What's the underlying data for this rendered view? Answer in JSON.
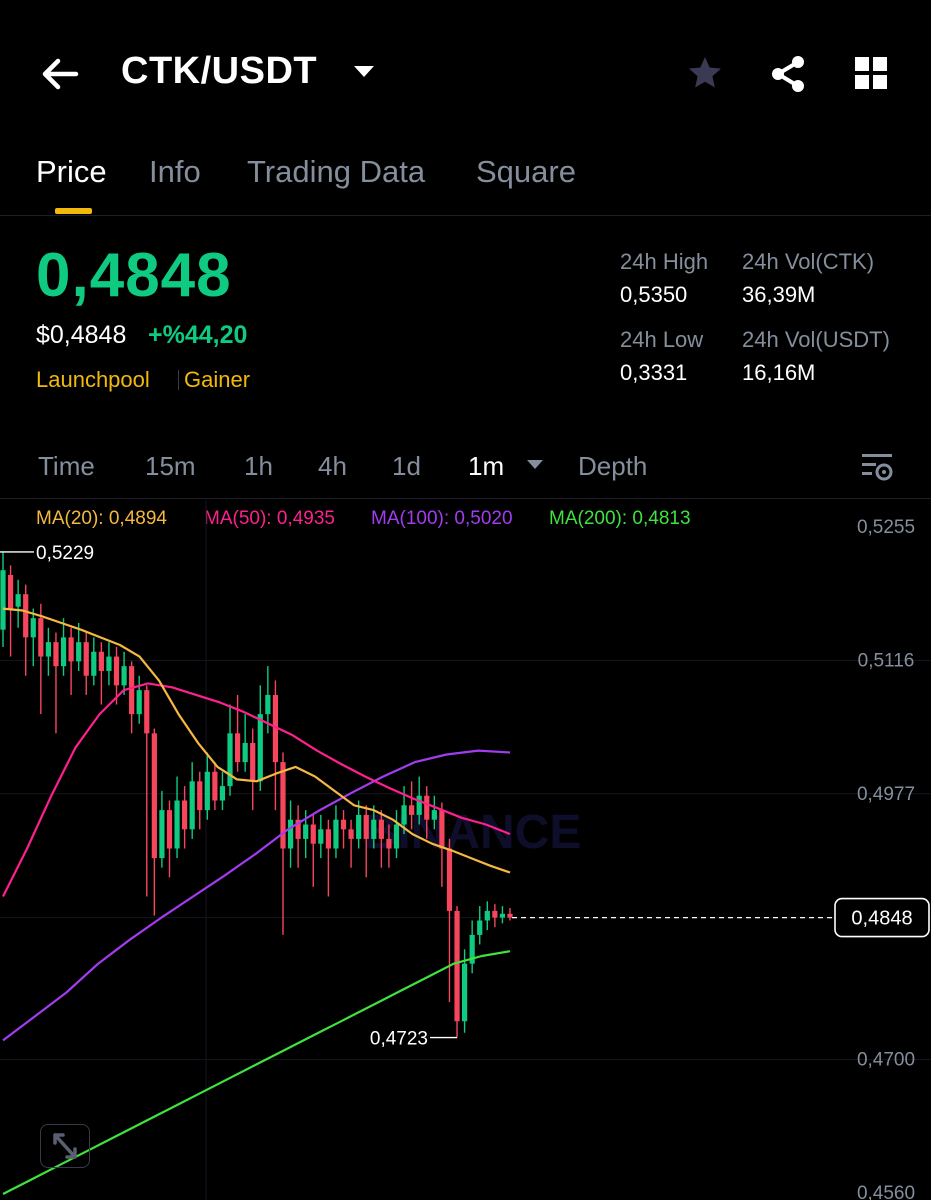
{
  "header": {
    "pair": "CTK/USDT",
    "icons": {
      "back": "arrow-left-icon",
      "favorite": "star-icon",
      "share": "share-icon",
      "more": "grid-icon"
    }
  },
  "tabs": [
    {
      "label": "Price",
      "active": true
    },
    {
      "label": "Info",
      "active": false
    },
    {
      "label": "Trading Data",
      "active": false
    },
    {
      "label": "Square",
      "active": false
    }
  ],
  "price": {
    "last": "0,4848",
    "usd": "$0,4848",
    "change": "+%44,20",
    "tags": [
      "Launchpool",
      "Gainer"
    ]
  },
  "stats": {
    "high_label": "24h High",
    "high": "0,5350",
    "vol_base_label": "24h Vol(CTK)",
    "vol_base": "36,39M",
    "low_label": "24h Low",
    "low": "0,3331",
    "vol_quote_label": "24h Vol(USDT)",
    "vol_quote": "16,16M"
  },
  "intervals": [
    {
      "label": "Time",
      "active": false
    },
    {
      "label": "15m",
      "active": false
    },
    {
      "label": "1h",
      "active": false
    },
    {
      "label": "4h",
      "active": false
    },
    {
      "label": "1d",
      "active": false
    },
    {
      "label": "1m",
      "active": true
    },
    {
      "label": "Depth",
      "active": false
    }
  ],
  "ma_legend": [
    {
      "label": "MA(20): 0,4894",
      "color": "#f5b841"
    },
    {
      "label": "MA(50): 0,4935",
      "color": "#ff1f8f"
    },
    {
      "label": "MA(100): 0,5020",
      "color": "#a23cf0"
    },
    {
      "label": "MA(200): 0,4813",
      "color": "#3fe23f"
    }
  ],
  "colors": {
    "up": "#0ecb81",
    "down": "#f6465d",
    "accent": "#f0b90b"
  },
  "chart_data": {
    "type": "candlestick",
    "y_ticks": [
      "0,5255",
      "0,5116",
      "0,4977",
      "0,4848",
      "0,4700",
      "0,4560"
    ],
    "ylim": [
      0.456,
      0.5255
    ],
    "current_price": "0,4848",
    "current_value": 0.4848,
    "high_marker": {
      "label": "0,5229",
      "value": 0.5229
    },
    "low_marker": {
      "label": "0,4723",
      "value": 0.4723
    },
    "watermark": "BINANCE",
    "candles": [
      [
        0.5148,
        0.521,
        0.5229,
        0.513
      ],
      [
        0.5205,
        0.517,
        0.5215,
        0.512
      ],
      [
        0.5172,
        0.5185,
        0.52,
        0.515
      ],
      [
        0.5185,
        0.514,
        0.5195,
        0.51
      ],
      [
        0.514,
        0.516,
        0.517,
        0.511
      ],
      [
        0.516,
        0.512,
        0.5175,
        0.506
      ],
      [
        0.512,
        0.5135,
        0.515,
        0.51
      ],
      [
        0.5135,
        0.511,
        0.5145,
        0.504
      ],
      [
        0.511,
        0.514,
        0.516,
        0.51
      ],
      [
        0.514,
        0.5115,
        0.515,
        0.508
      ],
      [
        0.5115,
        0.5135,
        0.5155,
        0.5105
      ],
      [
        0.5135,
        0.51,
        0.5145,
        0.508
      ],
      [
        0.51,
        0.5125,
        0.514,
        0.509
      ],
      [
        0.5125,
        0.5105,
        0.5135,
        0.507
      ],
      [
        0.5105,
        0.512,
        0.5135,
        0.509
      ],
      [
        0.512,
        0.509,
        0.513,
        0.507
      ],
      [
        0.509,
        0.511,
        0.5125,
        0.508
      ],
      [
        0.511,
        0.506,
        0.5115,
        0.504
      ],
      [
        0.506,
        0.5085,
        0.51,
        0.505
      ],
      [
        0.5085,
        0.504,
        0.509,
        0.487
      ],
      [
        0.504,
        0.491,
        0.5045,
        0.485
      ],
      [
        0.491,
        0.496,
        0.498,
        0.49
      ],
      [
        0.496,
        0.492,
        0.497,
        0.489
      ],
      [
        0.492,
        0.497,
        0.4995,
        0.491
      ],
      [
        0.497,
        0.494,
        0.4985,
        0.492
      ],
      [
        0.494,
        0.499,
        0.501,
        0.493
      ],
      [
        0.499,
        0.496,
        0.5,
        0.494
      ],
      [
        0.496,
        0.5,
        0.502,
        0.495
      ],
      [
        0.5,
        0.497,
        0.501,
        0.496
      ],
      [
        0.497,
        0.4985,
        0.5,
        0.496
      ],
      [
        0.4985,
        0.504,
        0.507,
        0.4975
      ],
      [
        0.504,
        0.501,
        0.508,
        0.5
      ],
      [
        0.501,
        0.503,
        0.506,
        0.5
      ],
      [
        0.503,
        0.499,
        0.5045,
        0.496
      ],
      [
        0.499,
        0.506,
        0.509,
        0.498
      ],
      [
        0.506,
        0.508,
        0.511,
        0.504
      ],
      [
        0.508,
        0.501,
        0.5095,
        0.496
      ],
      [
        0.501,
        0.492,
        0.502,
        0.483
      ],
      [
        0.492,
        0.495,
        0.497,
        0.49
      ],
      [
        0.495,
        0.493,
        0.4965,
        0.49
      ],
      [
        0.493,
        0.4945,
        0.496,
        0.491
      ],
      [
        0.4945,
        0.4925,
        0.4955,
        0.488
      ],
      [
        0.4925,
        0.494,
        0.4955,
        0.491
      ],
      [
        0.494,
        0.492,
        0.495,
        0.487
      ],
      [
        0.492,
        0.495,
        0.4965,
        0.491
      ],
      [
        0.495,
        0.494,
        0.496,
        0.492
      ],
      [
        0.494,
        0.493,
        0.495,
        0.49
      ],
      [
        0.493,
        0.4955,
        0.497,
        0.492
      ],
      [
        0.4955,
        0.493,
        0.4965,
        0.489
      ],
      [
        0.493,
        0.495,
        0.4965,
        0.492
      ],
      [
        0.495,
        0.493,
        0.496,
        0.49
      ],
      [
        0.493,
        0.492,
        0.4945,
        0.49
      ],
      [
        0.492,
        0.4945,
        0.496,
        0.491
      ],
      [
        0.4945,
        0.4965,
        0.4985,
        0.4935
      ],
      [
        0.4965,
        0.4955,
        0.499,
        0.494
      ],
      [
        0.4955,
        0.4975,
        0.4995,
        0.4945
      ],
      [
        0.4975,
        0.495,
        0.4985,
        0.493
      ],
      [
        0.495,
        0.496,
        0.4975,
        0.494
      ],
      [
        0.496,
        0.492,
        0.4968,
        0.488
      ],
      [
        0.492,
        0.4855,
        0.493,
        0.476
      ],
      [
        0.4855,
        0.474,
        0.486,
        0.4723
      ],
      [
        0.474,
        0.48,
        0.4815,
        0.4728
      ],
      [
        0.48,
        0.483,
        0.4845,
        0.479
      ],
      [
        0.483,
        0.4845,
        0.486,
        0.482
      ],
      [
        0.4845,
        0.4855,
        0.4865,
        0.4835
      ],
      [
        0.4855,
        0.4848,
        0.4862,
        0.4838
      ],
      [
        0.4848,
        0.4852,
        0.486,
        0.4842
      ],
      [
        0.4852,
        0.4848,
        0.4858,
        0.4845
      ]
    ],
    "ma20": [
      0.517,
      0.5168,
      0.5162,
      0.5155,
      0.5148,
      0.514,
      0.5132,
      0.512,
      0.5095,
      0.506,
      0.503,
      0.5005,
      0.4992,
      0.499,
      0.4998,
      0.5005,
      0.4995,
      0.498,
      0.4965,
      0.496,
      0.495,
      0.4935,
      0.4925,
      0.4918,
      0.491,
      0.4902,
      0.4895
    ],
    "ma50": [
      0.487,
      0.492,
      0.4975,
      0.5025,
      0.506,
      0.5085,
      0.5092,
      0.5088,
      0.508,
      0.5072,
      0.5062,
      0.505,
      0.5038,
      0.5022,
      0.5008,
      0.4995,
      0.4983,
      0.4972,
      0.4962,
      0.4952,
      0.4945,
      0.4935
    ],
    "ma100": [
      0.472,
      0.4745,
      0.477,
      0.48,
      0.4825,
      0.4848,
      0.487,
      0.4892,
      0.4915,
      0.494,
      0.496,
      0.4978,
      0.4995,
      0.501,
      0.5018,
      0.5022,
      0.502
    ],
    "ma200": [
      0.456,
      0.4575,
      0.459,
      0.4605,
      0.462,
      0.4635,
      0.465,
      0.4665,
      0.468,
      0.4695,
      0.471,
      0.4725,
      0.474,
      0.4755,
      0.477,
      0.4785,
      0.48,
      0.4808,
      0.4813
    ]
  }
}
